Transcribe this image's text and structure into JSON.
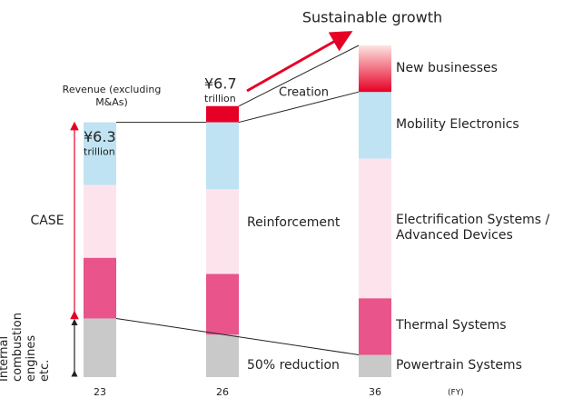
{
  "chart_data": {
    "type": "stacked_bar",
    "title": "Sustainable growth",
    "revenue_label": "Revenue (excluding M&As)",
    "categories": [
      "23",
      "26",
      "36"
    ],
    "x_unit": "(FY)",
    "series": [
      {
        "name": "Powertrain Systems",
        "color": "#c9c9c9",
        "values": [
          1.45,
          1.05,
          0.55
        ]
      },
      {
        "name": "Thermal Systems",
        "color": "#e9548a",
        "values": [
          1.5,
          1.5,
          1.4
        ]
      },
      {
        "name": "Electrification Systems / Advanced Devices",
        "color": "#fde4ec",
        "values": [
          1.8,
          2.1,
          3.45
        ]
      },
      {
        "name": "Mobility Electronics",
        "color": "#bfe3f2",
        "values": [
          1.55,
          1.65,
          1.65
        ]
      },
      {
        "name": "New businesses",
        "color": "#e60026",
        "values": [
          null,
          0.4,
          1.15
        ]
      }
    ],
    "totals": [
      6.3,
      6.7,
      null
    ],
    "total_labels": [
      "¥6.3",
      "¥6.7",
      null
    ],
    "unit_label": "trillion",
    "annotations": {
      "case": "CASE",
      "ice": "Internal combustion engines etc.",
      "creation": "Creation",
      "reinforcement": "Reinforcement",
      "reduction": "50% reduction"
    },
    "case_color": "#e60026"
  }
}
